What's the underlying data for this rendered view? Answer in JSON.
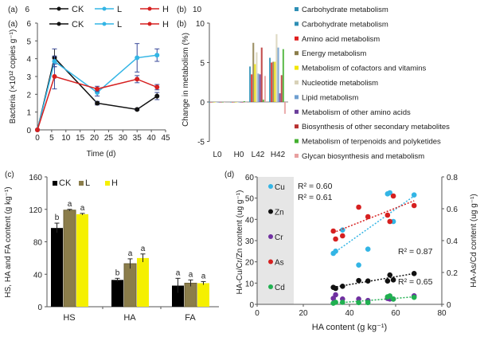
{
  "chart_data": [
    {
      "panel": "(a)",
      "type": "line",
      "ghost_header": {
        "panel": "(a)",
        "tick": "6"
      },
      "xlabel": "Time (d)",
      "ylabel": "Bacteria (×10¹² copies g⁻¹)",
      "xlim": [
        0,
        45
      ],
      "ylim": [
        0,
        6
      ],
      "xticks": [
        "0",
        "5",
        "10",
        "15",
        "20",
        "25",
        "30",
        "35",
        "40",
        "45"
      ],
      "yticks": [
        "0",
        "1",
        "2",
        "3",
        "4",
        "5",
        "6"
      ],
      "legend": "top",
      "x": [
        0,
        6,
        21,
        35,
        42
      ],
      "series": [
        {
          "name": "CK",
          "color": "#111111",
          "values": [
            0,
            4.05,
            1.5,
            1.15,
            1.9
          ],
          "err": [
            0,
            0.5,
            0.1,
            0.05,
            0.2
          ]
        },
        {
          "name": "L",
          "color": "#33b5e5",
          "values": [
            0,
            3.85,
            2.1,
            4.05,
            4.2
          ],
          "err": [
            0,
            0.3,
            0.2,
            0.8,
            0.35
          ]
        },
        {
          "name": "H",
          "color": "#d62020",
          "values": [
            0,
            3.0,
            2.3,
            2.85,
            2.4
          ],
          "err": [
            0,
            0.7,
            0.15,
            0.2,
            0.15
          ]
        }
      ]
    },
    {
      "panel": "(b)",
      "type": "bar",
      "ghost_header": {
        "panel": "(b)",
        "tick": "10"
      },
      "ylabel": "Change in metabolism (%)",
      "ylim": [
        -5,
        10
      ],
      "yticks": [
        "-5",
        "0",
        "5",
        "10"
      ],
      "categories": [
        "L0",
        "H0",
        "L42",
        "H42"
      ],
      "legend": "right",
      "legend_ghost": "Carbohydrate metabolism",
      "series": [
        {
          "name": "Carbohydrate metabolism",
          "color": "#2e8fb5",
          "values": [
            0,
            0,
            4.5,
            5.6
          ]
        },
        {
          "name": "Amino acid metabolism",
          "color": "#e02020",
          "values": [
            0,
            0,
            3.5,
            5.0
          ]
        },
        {
          "name": "Energy metabolism",
          "color": "#8b7d4a",
          "values": [
            0,
            0,
            7.5,
            5.1
          ]
        },
        {
          "name": "Metabolism of cofactors and vitamins",
          "color": "#f2e600",
          "values": [
            0,
            0,
            4.8,
            5.1
          ]
        },
        {
          "name": "Nucleotide metabolism",
          "color": "#d8d2b8",
          "values": [
            0,
            0,
            6.3,
            8.6
          ]
        },
        {
          "name": "Lipid metabolism",
          "color": "#6f9fd0",
          "values": [
            0,
            0,
            3.6,
            6.9
          ]
        },
        {
          "name": "Metabolism of other amino acids",
          "color": "#6a3d9a",
          "values": [
            0,
            0,
            3.5,
            1.1
          ]
        },
        {
          "name": "Biosynthesis of other secondary metabolites",
          "color": "#b83030",
          "values": [
            0,
            0,
            6.9,
            3.4
          ]
        },
        {
          "name": "Metabolism of terpenoids and polyketides",
          "color": "#44b030",
          "values": [
            0,
            0.1,
            0.3,
            6.7
          ]
        },
        {
          "name": "Glycan biosynthesis and metabolism",
          "color": "#e8a0a0",
          "values": [
            0,
            0,
            3.3,
            -1.5
          ]
        }
      ]
    },
    {
      "panel": "(c)",
      "type": "bar",
      "ylabel": "HS, HA and FA content (g kg⁻¹)",
      "ylim": [
        0,
        160
      ],
      "yticks": [
        "0",
        "40",
        "80",
        "120",
        "160"
      ],
      "categories": [
        "HS",
        "HA",
        "FA"
      ],
      "legend": "top-left",
      "series": [
        {
          "name": "CK",
          "color": "#000000",
          "values": [
            97,
            33,
            26
          ],
          "err": [
            6,
            2,
            9
          ],
          "letters": [
            "b",
            "b",
            "a"
          ]
        },
        {
          "name": "L",
          "color": "#8b7d4a",
          "values": [
            119,
            53,
            29
          ],
          "err": [
            1,
            6,
            4
          ],
          "letters": [
            "a",
            "a",
            "a"
          ]
        },
        {
          "name": "H",
          "color": "#f5f000",
          "values": [
            114,
            60,
            29
          ],
          "err": [
            1,
            5,
            2
          ],
          "letters": [
            "a",
            "a",
            "a"
          ]
        }
      ]
    },
    {
      "panel": "(d)",
      "type": "scatter",
      "xlabel": "HA content (g kg⁻¹)",
      "ylabel": "HA-Cu/Cr/Zn content (ug g⁻¹)",
      "y2label": "HA-As/Cd content (ug g⁻¹)",
      "xlim": [
        0,
        80
      ],
      "ylim": [
        0,
        60
      ],
      "y2lim": [
        0,
        0.8
      ],
      "xticks": [
        "0",
        "20",
        "40",
        "60",
        "80"
      ],
      "yticks": [
        "0",
        "10",
        "20",
        "30",
        "40",
        "50",
        "60"
      ],
      "y2ticks": [
        "0",
        "0.2",
        "0.4",
        "0.6",
        "0.8"
      ],
      "legend": "left",
      "x": [
        33,
        34,
        37,
        44,
        48,
        56.5,
        57.5,
        59,
        68
      ],
      "series": [
        {
          "name": "Cu",
          "axis": "left",
          "color": "#33b5e5",
          "values": [
            24,
            25,
            35,
            18.5,
            26,
            52,
            52.5,
            39,
            51.5
          ],
          "trend": [
            24,
            51
          ],
          "r2": "R² = 0.61"
        },
        {
          "name": "Zn",
          "axis": "left",
          "color": "#111111",
          "values": [
            8,
            7.5,
            8.5,
            11.2,
            11,
            11,
            13.8,
            11.5,
            14.5
          ],
          "trend": [
            8,
            14.5
          ],
          "r2": "R² = 0.87"
        },
        {
          "name": "Cr",
          "axis": "left",
          "color": "#7030a0",
          "values": [
            2.8,
            4.5,
            2.5,
            2.5,
            1.8,
            2.8,
            2.5,
            2.5,
            4.0
          ],
          "trend": null,
          "r2": null
        },
        {
          "name": "As",
          "axis": "right",
          "color": "#d62020",
          "values": [
            0.46,
            0.41,
            0.43,
            0.61,
            0.55,
            0.56,
            0.52,
            0.68,
            0.62
          ],
          "trend": [
            0.45,
            0.65
          ],
          "r2": "R² = 0.60"
        },
        {
          "name": "Cd",
          "axis": "right",
          "color": "#20b050",
          "values": [
            0.007,
            0.013,
            0.013,
            0.011,
            0.011,
            0.047,
            0.053,
            0.033,
            0.044
          ],
          "trend": [
            0.007,
            0.047
          ],
          "r2": "R² = 0.65"
        }
      ]
    }
  ]
}
